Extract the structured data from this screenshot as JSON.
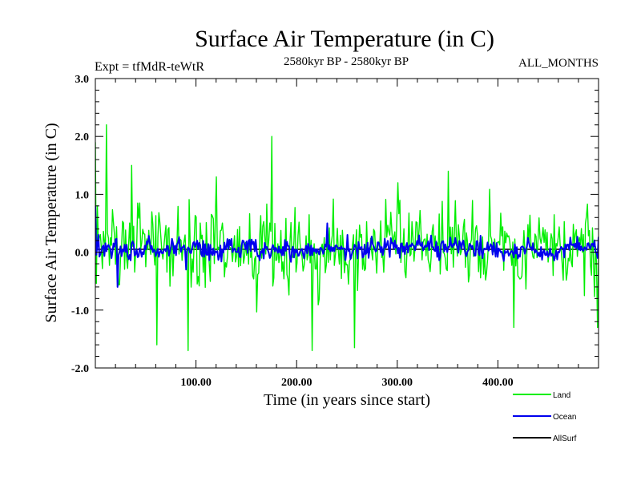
{
  "chart_data": {
    "type": "line",
    "title": "Surface Air Temperature (in C)",
    "subtitle": "2580kyr BP - 2580kyr BP",
    "left_note": "Expt = tfMdR-teWtR",
    "right_note": "ALL_MONTHS",
    "xlabel": "Time (in years since start)",
    "ylabel": "Surface Air Temperature (in C)",
    "xlim": [
      0,
      500
    ],
    "ylim": [
      -2.0,
      3.0
    ],
    "xticks": [
      100,
      200,
      300,
      400
    ],
    "xtick_labels": [
      "100.00",
      "200.00",
      "300.00",
      "400.00"
    ],
    "yticks": [
      -2.0,
      -1.0,
      0.0,
      1.0,
      2.0,
      3.0
    ],
    "ytick_labels": [
      "-2.0",
      "-1.0",
      "0.0",
      "1.0",
      "2.0",
      "3.0"
    ],
    "grid": false,
    "legend_position": "bottom-right outside",
    "n_points": 500,
    "series": [
      {
        "name": "Land",
        "color": "#00ee00",
        "mean": 0.1,
        "noise_amplitude": 0.55,
        "range": [
          -1.7,
          2.2
        ],
        "keypoints": [
          [
            0,
            1.9
          ],
          [
            2,
            0.8
          ],
          [
            11,
            2.2
          ],
          [
            36,
            1.5
          ],
          [
            61,
            -1.6
          ],
          [
            92,
            -1.7
          ],
          [
            120,
            1.3
          ],
          [
            175,
            2.0
          ],
          [
            215,
            -1.7
          ],
          [
            257,
            -1.65
          ],
          [
            300,
            1.2
          ],
          [
            350,
            1.4
          ],
          [
            415,
            -1.3
          ],
          [
            498,
            -1.3
          ]
        ]
      },
      {
        "name": "Ocean",
        "color": "#0000ee",
        "mean": 0.05,
        "noise_amplitude": 0.15,
        "range": [
          -0.6,
          0.8
        ],
        "keypoints": [
          [
            0,
            0.8
          ],
          [
            3,
            0.3
          ],
          [
            22,
            -0.6
          ],
          [
            90,
            -0.3
          ],
          [
            230,
            0.5
          ],
          [
            250,
            0.3
          ],
          [
            498,
            -0.1
          ]
        ]
      },
      {
        "name": "AllSurf",
        "color": "#000000",
        "mean": 0.05,
        "noise_amplitude": 0.0,
        "range": [
          0.0,
          0.1
        ],
        "keypoints": []
      }
    ]
  }
}
